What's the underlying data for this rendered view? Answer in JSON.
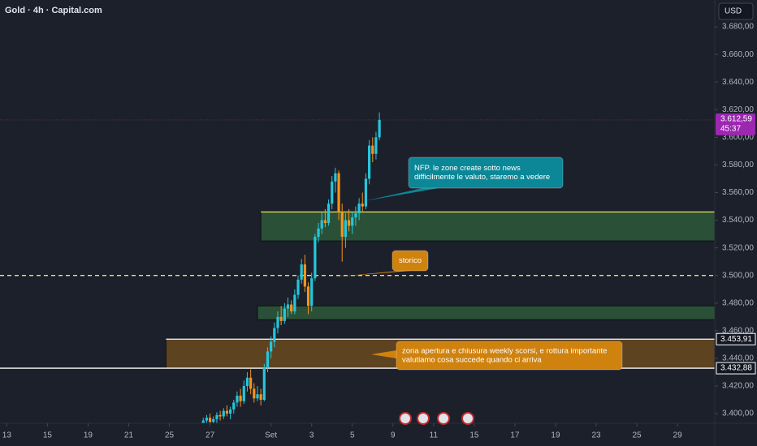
{
  "header": {
    "title": "Gold · 4h · Capital.com",
    "currency": "USD"
  },
  "chart_data": {
    "type": "candlestick",
    "x": [
      60,
      61,
      62,
      63,
      64,
      65,
      66,
      67,
      68,
      69,
      70,
      71,
      72,
      73,
      74,
      75,
      76,
      77,
      78,
      79,
      80,
      81,
      82,
      83,
      84,
      85,
      86,
      87,
      88,
      89,
      90,
      91,
      92,
      93,
      94,
      95,
      96,
      97,
      98,
      99,
      100,
      101,
      102,
      103,
      104,
      105,
      106,
      107,
      108,
      109,
      110,
      111,
      112
    ],
    "open": [
      3392,
      3395,
      3397,
      3394,
      3396,
      3399,
      3398,
      3402,
      3400,
      3403,
      3408,
      3413,
      3409,
      3420,
      3426,
      3418,
      3411,
      3414,
      3410,
      3433,
      3445,
      3452,
      3462,
      3470,
      3467,
      3476,
      3479,
      3474,
      3486,
      3497,
      3508,
      3492,
      3478,
      3498,
      3528,
      3534,
      3540,
      3538,
      3552,
      3568,
      3574,
      3546,
      3528,
      3540,
      3536,
      3542,
      3545,
      3552,
      3550,
      3570,
      3594,
      3588,
      3600
    ],
    "high": [
      3397,
      3399,
      3400,
      3398,
      3401,
      3402,
      3404,
      3406,
      3405,
      3410,
      3416,
      3418,
      3424,
      3430,
      3432,
      3422,
      3420,
      3418,
      3436,
      3448,
      3456,
      3466,
      3474,
      3478,
      3480,
      3484,
      3482,
      3490,
      3500,
      3512,
      3515,
      3495,
      3502,
      3530,
      3538,
      3546,
      3548,
      3555,
      3572,
      3578,
      3576,
      3552,
      3545,
      3548,
      3546,
      3550,
      3556,
      3560,
      3574,
      3598,
      3600,
      3604,
      3618
    ],
    "low": [
      3388,
      3391,
      3393,
      3390,
      3392,
      3395,
      3396,
      3398,
      3396,
      3400,
      3405,
      3405,
      3407,
      3416,
      3414,
      3408,
      3409,
      3406,
      3409,
      3430,
      3440,
      3448,
      3458,
      3464,
      3465,
      3470,
      3472,
      3472,
      3483,
      3494,
      3488,
      3472,
      3474,
      3496,
      3524,
      3530,
      3535,
      3536,
      3548,
      3560,
      3540,
      3510,
      3520,
      3532,
      3530,
      3536,
      3540,
      3546,
      3548,
      3566,
      3582,
      3584,
      3598
    ],
    "close": [
      3395,
      3397,
      3394,
      3396,
      3399,
      3398,
      3402,
      3400,
      3403,
      3408,
      3413,
      3409,
      3420,
      3426,
      3418,
      3411,
      3414,
      3410,
      3433,
      3445,
      3452,
      3462,
      3470,
      3467,
      3476,
      3479,
      3474,
      3486,
      3497,
      3508,
      3492,
      3478,
      3498,
      3528,
      3534,
      3540,
      3538,
      3552,
      3568,
      3574,
      3546,
      3528,
      3540,
      3536,
      3542,
      3545,
      3552,
      3550,
      3570,
      3594,
      3588,
      3600,
      3612.59
    ],
    "up_color": "#26c6da",
    "down_color": "#f7931a",
    "xlim": [
      0,
      211
    ],
    "xticks": [
      {
        "value": 2,
        "label": "13"
      },
      {
        "value": 14,
        "label": "15"
      },
      {
        "value": 26,
        "label": "19"
      },
      {
        "value": 38,
        "label": "21"
      },
      {
        "value": 50,
        "label": "25"
      },
      {
        "value": 62,
        "label": "27"
      },
      {
        "value": 80,
        "label": "Set"
      },
      {
        "value": 92,
        "label": "3"
      },
      {
        "value": 104,
        "label": "5"
      },
      {
        "value": 116,
        "label": "9"
      },
      {
        "value": 128,
        "label": "11"
      },
      {
        "value": 140,
        "label": "15"
      },
      {
        "value": 152,
        "label": "17"
      },
      {
        "value": 164,
        "label": "19"
      },
      {
        "value": 176,
        "label": "23"
      },
      {
        "value": 188,
        "label": "25"
      },
      {
        "value": 200,
        "label": "29"
      }
    ],
    "ylim": [
      3393,
      3699.4
    ],
    "yticks": [
      {
        "value": 3400,
        "label": "3.400,00"
      },
      {
        "value": 3420,
        "label": "3.420,00"
      },
      {
        "value": 3440,
        "label": "3.440,00"
      },
      {
        "value": 3460,
        "label": "3.460,00"
      },
      {
        "value": 3480,
        "label": "3.480,00"
      },
      {
        "value": 3500,
        "label": "3.500,00"
      },
      {
        "value": 3520,
        "label": "3.520,00"
      },
      {
        "value": 3540,
        "label": "3.540,00"
      },
      {
        "value": 3560,
        "label": "3.560,00"
      },
      {
        "value": 3580,
        "label": "3.580,00"
      },
      {
        "value": 3600,
        "label": "3.600,00"
      },
      {
        "value": 3620,
        "label": "3.620,00"
      },
      {
        "value": 3640,
        "label": "3.640,00"
      },
      {
        "value": 3660,
        "label": "3.660,00"
      },
      {
        "value": 3680,
        "label": "3.680,00"
      }
    ],
    "current_price": {
      "value": 3612.59,
      "label": "3.612,59",
      "countdown": "45:37",
      "color": "#9c27b0"
    },
    "zones": [
      {
        "top": 3546,
        "bottom": 3525,
        "x_start": 77,
        "color": "#2d5a3a"
      },
      {
        "top": 3478,
        "bottom": 3468,
        "x_start": 76,
        "color": "#2d5a3a"
      },
      {
        "top": 3453.91,
        "bottom": 3432.88,
        "x_start": 49,
        "color": "#6a4a1e"
      }
    ],
    "levels": [
      {
        "value": 3546,
        "color": "#f2e35c",
        "dashed": false,
        "x_start": 77
      },
      {
        "value": 3500,
        "color": "#f2e35c",
        "dashed": true,
        "x_start": 0
      },
      {
        "value": 3453.91,
        "label": "3.453,91",
        "color": "#ffffff",
        "dashed": false,
        "x_start": 49
      },
      {
        "value": 3432.88,
        "label": "3.432,88",
        "color": "#ffffff",
        "dashed": false,
        "x_start": 0
      }
    ],
    "annotations": [
      {
        "lines": [
          "NFP. le zone create sotto news",
          "difficilmente le valuto, staremo a vedere"
        ],
        "color": "#0b8797"
      },
      {
        "lines": [
          "storico"
        ],
        "color": "#cf820e"
      },
      {
        "lines": [
          "zona apertura e chiusura weekly scorsi, e rottura importante",
          "valutiamo cosa succede quando ci arriva"
        ],
        "color": "#cf820e"
      }
    ]
  }
}
